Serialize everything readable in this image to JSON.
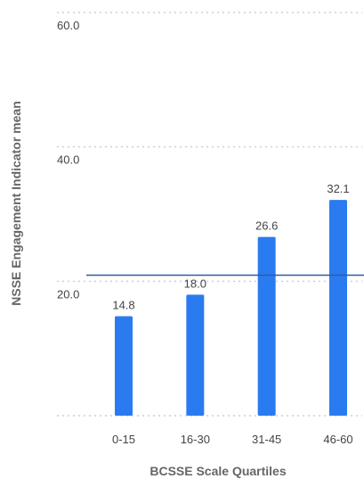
{
  "chart_data": {
    "type": "bar",
    "title": "",
    "xlabel": "BCSSE Scale Quartiles",
    "ylabel": "NSSE Engagement Indicator mean",
    "categories": [
      "0-15",
      "16-30",
      "31-45",
      "46-60"
    ],
    "values": [
      14.8,
      18.0,
      26.6,
      32.1
    ],
    "data_labels": [
      "14.8",
      "18.0",
      "26.6",
      "32.1"
    ],
    "y_ticks": [
      20.0,
      40.0,
      60.0
    ],
    "y_tick_labels": [
      "20.0",
      "40.0",
      "60.0"
    ],
    "ylim": [
      0,
      60
    ],
    "reference_line": 20.9,
    "grid": true,
    "colors": {
      "bar": "#2b7bf0",
      "reference_line": "#2f5aa8",
      "grid": "#cfcfcf",
      "text": "#444444",
      "axis_label": "#666666"
    }
  }
}
